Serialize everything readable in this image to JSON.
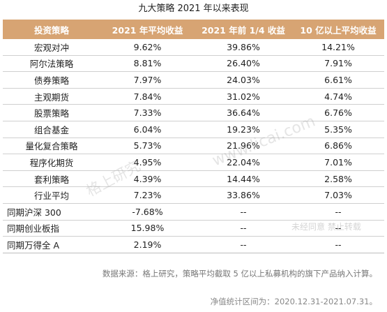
{
  "title": "九大策略 2021 年以来表现",
  "headers": [
    "投资策略",
    "2021 年平均收益",
    "2021 年前 1/4 收益",
    "10 亿以上平均收益"
  ],
  "rows": [
    {
      "name": "宏观对冲",
      "ytd": "9.62%",
      "q": "39.86%",
      "big": "14.21%"
    },
    {
      "name": "阿尔法策略",
      "ytd": "8.81%",
      "q": "26.40%",
      "big": "7.91%"
    },
    {
      "name": "债券策略",
      "ytd": "7.97%",
      "q": "24.03%",
      "big": "6.61%"
    },
    {
      "name": "主观期货",
      "ytd": "7.84%",
      "q": "31.02%",
      "big": "4.74%"
    },
    {
      "name": "股票策略",
      "ytd": "7.33%",
      "q": "36.64%",
      "big": "6.76%"
    },
    {
      "name": "组合基金",
      "ytd": "6.04%",
      "q": "19.23%",
      "big": "5.35%"
    },
    {
      "name": "量化复合策略",
      "ytd": "5.73%",
      "q": "21.96%",
      "big": "6.86%"
    },
    {
      "name": "程序化期货",
      "ytd": "4.95%",
      "q": "22.04%",
      "big": "7.01%"
    },
    {
      "name": "套利策略",
      "ytd": "4.39%",
      "q": "14.44%",
      "big": "2.58%"
    },
    {
      "name": "行业平均",
      "ytd": "7.23%",
      "q": "33.86%",
      "big": "7.03%"
    },
    {
      "name": "同期沪深 300",
      "ytd": "-7.68%",
      "q": "--",
      "big": "--"
    },
    {
      "name": "同期创业板指",
      "ytd": "15.98%",
      "q": "--",
      "big": "--"
    },
    {
      "name": "同期万得全 A",
      "ytd": "2.19%",
      "q": "--",
      "big": "--"
    }
  ],
  "note": "数据来源：格上研究，策略平均截取 5 亿以上私募机构的旗下产品纳入计算。",
  "period": "净值统计区间为：2020.12.31-2021.07.31。",
  "watermarks": [
    "格上研究",
    "www.licai.com",
    "未经同意 禁止转载"
  ]
}
